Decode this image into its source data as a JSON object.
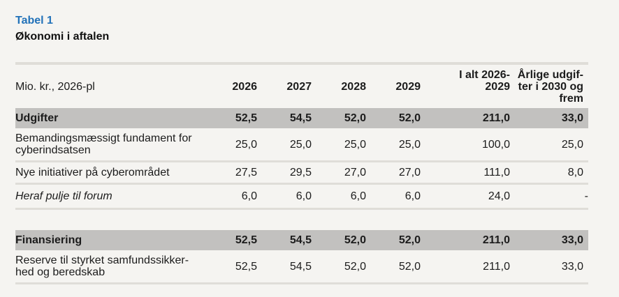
{
  "table": {
    "label": "Tabel 1",
    "title": "Økonomi i aftalen",
    "unit_header": "Mio. kr., 2026-pl",
    "columns": [
      {
        "id": "2026",
        "lines": [
          "2026"
        ]
      },
      {
        "id": "2027",
        "lines": [
          "2027"
        ]
      },
      {
        "id": "2028",
        "lines": [
          "2028"
        ]
      },
      {
        "id": "2029",
        "lines": [
          "2029"
        ]
      },
      {
        "id": "total-2026-2029",
        "lines": [
          "I alt 2026-",
          "2029"
        ]
      },
      {
        "id": "annual-2030-onward",
        "lines": [
          "Årlige udgif-",
          "ter i 2030 og",
          "frem"
        ],
        "tall": true
      }
    ],
    "rows": [
      {
        "style": "band",
        "label_lines": [
          "Udgifter"
        ],
        "values": [
          "52,5",
          "54,5",
          "52,0",
          "52,0",
          "211,0",
          "33,0"
        ],
        "marker_after_value": 0
      },
      {
        "style": "normal",
        "label_lines": [
          "Bemandingsmæssigt fundament for",
          "cyberindsatsen"
        ],
        "values": [
          "25,0",
          "25,0",
          "25,0",
          "25,0",
          "100,0",
          "25,0"
        ]
      },
      {
        "style": "normal",
        "label_lines": [
          "Nye initiativer på cyberområdet"
        ],
        "values": [
          "27,5",
          "29,5",
          "27,0",
          "27,0",
          "111,0",
          "8,0"
        ]
      },
      {
        "style": "italic",
        "label_lines": [
          "Heraf pulje til forum"
        ],
        "values": [
          "6,0",
          "6,0",
          "6,0",
          "6,0",
          "24,0",
          "-"
        ]
      },
      {
        "style": "spacer"
      },
      {
        "style": "band",
        "label_lines": [
          "Finansiering"
        ],
        "values": [
          "52,5",
          "54,5",
          "52,0",
          "52,0",
          "211,0",
          "33,0"
        ]
      },
      {
        "style": "normal",
        "label_lines": [
          "Reserve til styrket samfundssikker-",
          "hed og beredskab"
        ],
        "values": [
          "52,5",
          "54,5",
          "52,0",
          "52,0",
          "211,0",
          "33,0"
        ]
      }
    ]
  },
  "colors": {
    "accent_blue": "#2272b9",
    "band_gray": "#c2c1bf",
    "rule_gray": "#dfddd8",
    "page_background": "#f5f4f1",
    "annotation_red": "#d93025"
  }
}
